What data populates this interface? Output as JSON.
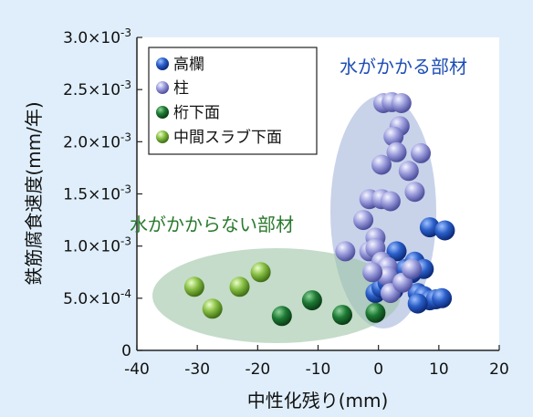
{
  "chart_data": {
    "type": "scatter",
    "xlabel": "中性化残り(mm)",
    "ylabel": "鉄筋腐食速度(mm/年)",
    "xlim": [
      -40,
      20
    ],
    "ylim": [
      0,
      0.003
    ],
    "x_ticks": [
      "-40",
      "-30",
      "-20",
      "-10",
      "0",
      "10",
      "20"
    ],
    "y_ticks": [
      {
        "mantissa": "0",
        "exp": ""
      },
      {
        "mantissa": "5.0×10",
        "exp": "-4"
      },
      {
        "mantissa": "1.0×10",
        "exp": "-3"
      },
      {
        "mantissa": "1.5×10",
        "exp": "-3"
      },
      {
        "mantissa": "2.0×10",
        "exp": "-3"
      },
      {
        "mantissa": "2.5×10",
        "exp": "-3"
      },
      {
        "mantissa": "3.0×10",
        "exp": "-3"
      }
    ],
    "grid": false,
    "legend_position": "top-left",
    "series": [
      {
        "name": "高欄",
        "color": "#1f4fb5",
        "points": [
          [
            -0.5,
            0.00055
          ],
          [
            0.5,
            0.0006
          ],
          [
            1.5,
            0.00065
          ],
          [
            2.5,
            0.00058
          ],
          [
            3.5,
            0.0007
          ],
          [
            4.5,
            0.00078
          ],
          [
            5.5,
            0.00074
          ],
          [
            6.5,
            0.00055
          ],
          [
            7.5,
            0.00052
          ],
          [
            8.5,
            0.00048
          ],
          [
            9.5,
            0.00049
          ],
          [
            10.5,
            0.0005
          ],
          [
            3.0,
            0.00095
          ],
          [
            6.0,
            0.00085
          ],
          [
            7.5,
            0.00078
          ],
          [
            8.5,
            0.00118
          ],
          [
            11.0,
            0.00115
          ],
          [
            6.5,
            0.00045
          ],
          [
            2.0,
            0.00065
          ]
        ]
      },
      {
        "name": "柱",
        "color": "#8d90d4",
        "points": [
          [
            0.8,
            0.00237
          ],
          [
            2.2,
            0.00238
          ],
          [
            3.8,
            0.00237
          ],
          [
            3.5,
            0.00215
          ],
          [
            2.5,
            0.00205
          ],
          [
            3.0,
            0.0019
          ],
          [
            7.0,
            0.00189
          ],
          [
            0.5,
            0.00178
          ],
          [
            5.0,
            0.00172
          ],
          [
            6.0,
            0.00152
          ],
          [
            -1.5,
            0.00145
          ],
          [
            0.5,
            0.00145
          ],
          [
            2.0,
            0.00143
          ],
          [
            -2.5,
            0.00125
          ],
          [
            -0.5,
            0.00108
          ],
          [
            -1.5,
            0.00095
          ],
          [
            -0.5,
            0.00098
          ],
          [
            0.5,
            0.00085
          ],
          [
            1.5,
            0.0008
          ],
          [
            1.5,
            0.00071
          ],
          [
            2.0,
            0.00055
          ],
          [
            -1.0,
            0.00075
          ],
          [
            -5.5,
            0.00095
          ],
          [
            4.0,
            0.00065
          ],
          [
            5.5,
            0.00078
          ]
        ]
      },
      {
        "name": "桁下面",
        "color": "#1b6b2c",
        "points": [
          [
            -16,
            0.00033
          ],
          [
            -11,
            0.00048
          ],
          [
            -6,
            0.00034
          ],
          [
            -0.5,
            0.00036
          ]
        ]
      },
      {
        "name": "中間スラブ下面",
        "color": "#7db53a",
        "points": [
          [
            -30.5,
            0.00061
          ],
          [
            -27.5,
            0.0004
          ],
          [
            -23,
            0.00061
          ],
          [
            -19.5,
            0.00075
          ]
        ]
      }
    ],
    "regions": [
      {
        "label": "水がかかる部材",
        "color": "#1f4fb5"
      },
      {
        "label": "水がかからない部材",
        "color": "#2b7a2e"
      }
    ]
  }
}
